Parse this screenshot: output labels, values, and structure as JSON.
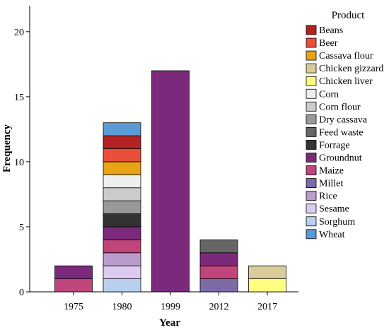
{
  "chart_data": {
    "type": "bar",
    "stacked": true,
    "xlabel": "Year",
    "ylabel": "Frequency",
    "ylim": [
      0,
      22
    ],
    "yticks": [
      0,
      5,
      10,
      15,
      20
    ],
    "categories": [
      "1975",
      "1980",
      "1999",
      "2012",
      "2017"
    ],
    "legend_title": "Product",
    "legend_position": "right",
    "grid": false,
    "series": [
      {
        "name": "Beans",
        "color": "#b22222",
        "values": [
          0,
          1,
          0,
          0,
          0
        ]
      },
      {
        "name": "Beer",
        "color": "#e8503a",
        "values": [
          0,
          1,
          0,
          0,
          0
        ]
      },
      {
        "name": "Cassava flour",
        "color": "#e8a317",
        "values": [
          0,
          1,
          0,
          0,
          0
        ]
      },
      {
        "name": "Chicken gizzard",
        "color": "#d9cc99",
        "values": [
          0,
          0,
          0,
          0,
          1
        ]
      },
      {
        "name": "Chicken liver",
        "color": "#ffff80",
        "values": [
          0,
          0,
          0,
          0,
          1
        ]
      },
      {
        "name": "Corn",
        "color": "#eeeeee",
        "values": [
          0,
          1,
          0,
          0,
          0
        ]
      },
      {
        "name": "Corn flour",
        "color": "#cccccc",
        "values": [
          0,
          1,
          0,
          0,
          0
        ]
      },
      {
        "name": "Dry cassava",
        "color": "#999999",
        "values": [
          0,
          1,
          0,
          0,
          0
        ]
      },
      {
        "name": "Feed waste",
        "color": "#666666",
        "values": [
          0,
          0,
          0,
          1,
          0
        ]
      },
      {
        "name": "Forrage",
        "color": "#333333",
        "values": [
          0,
          1,
          0,
          0,
          0
        ]
      },
      {
        "name": "Groundnut",
        "color": "#7b2a7b",
        "values": [
          1,
          1,
          17,
          1,
          0
        ]
      },
      {
        "name": "Maize",
        "color": "#c0457a",
        "values": [
          1,
          1,
          0,
          1,
          0
        ]
      },
      {
        "name": "Millet",
        "color": "#7d6ba8",
        "values": [
          0,
          0,
          0,
          1,
          0
        ]
      },
      {
        "name": "Rice",
        "color": "#b99ccc",
        "values": [
          0,
          1,
          0,
          0,
          0
        ]
      },
      {
        "name": "Sesame",
        "color": "#dccaf0",
        "values": [
          0,
          1,
          0,
          0,
          0
        ]
      },
      {
        "name": "Sorghum",
        "color": "#b8cff0",
        "values": [
          0,
          1,
          0,
          0,
          0
        ]
      },
      {
        "name": "Wheat",
        "color": "#5b9bd5",
        "values": [
          0,
          1,
          0,
          0,
          0
        ]
      }
    ],
    "stack_order": {
      "1975": [
        "Maize",
        "Groundnut"
      ],
      "1980": [
        "Sorghum",
        "Sesame",
        "Rice",
        "Maize",
        "Groundnut",
        "Forrage",
        "Dry cassava",
        "Corn flour",
        "Corn",
        "Cassava flour",
        "Beer",
        "Beans",
        "Wheat"
      ],
      "1999": [
        "Groundnut"
      ],
      "2012": [
        "Millet",
        "Maize",
        "Groundnut",
        "Feed waste"
      ],
      "2017": [
        "Chicken liver",
        "Chicken gizzard"
      ]
    }
  }
}
